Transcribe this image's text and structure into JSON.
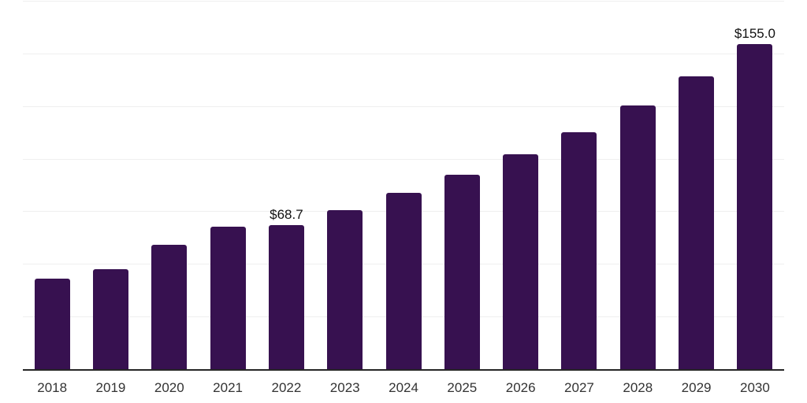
{
  "chart_data": {
    "type": "bar",
    "title": "",
    "xlabel": "",
    "ylabel": "",
    "categories": [
      "2018",
      "2019",
      "2020",
      "2021",
      "2022",
      "2023",
      "2024",
      "2025",
      "2026",
      "2027",
      "2028",
      "2029",
      "2030"
    ],
    "values": [
      43.5,
      47.8,
      59.5,
      68.2,
      68.7,
      75.9,
      84.0,
      92.8,
      102.4,
      113.1,
      125.8,
      139.6,
      155.0
    ],
    "data_labels": [
      "",
      "",
      "",
      "",
      "$68.7",
      "",
      "",
      "",
      "",
      "",
      "",
      "",
      "$155.0"
    ],
    "ylim": [
      0,
      175
    ],
    "gridline_step": 25,
    "grid": true,
    "legend": false,
    "y_axis_labels_visible": false,
    "colors": {
      "bar": "#371150",
      "axis_line": "#262626",
      "gridline": "#efefef",
      "tick_label": "#333333",
      "data_label": "#111111",
      "background": "#ffffff"
    }
  }
}
